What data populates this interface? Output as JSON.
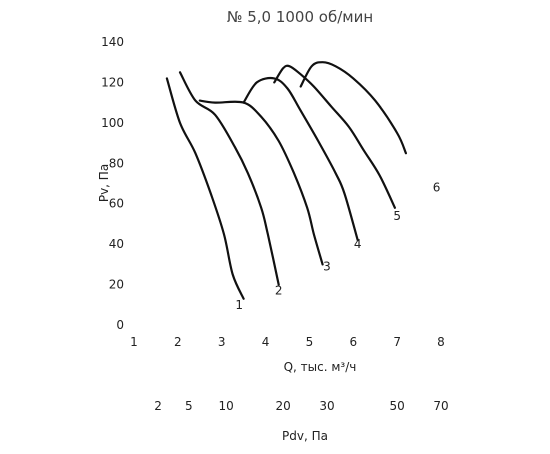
{
  "chart_data": {
    "type": "line",
    "title": "№ 5,0 1000 об/мин",
    "xlabel": "Q, тыс. м³/ч",
    "ylabel": "Pv, Па",
    "xlim": [
      1,
      8
    ],
    "ylim": [
      0,
      140
    ],
    "x_ticks": [
      1,
      2,
      3,
      4,
      5,
      6,
      7,
      8
    ],
    "y_ticks": [
      0,
      20,
      40,
      60,
      80,
      100,
      120,
      140
    ],
    "grid": false,
    "secondary_axis": {
      "label": "Pdv, Па",
      "tick_labels": [
        "2",
        "5",
        "10",
        "20",
        "30",
        "50",
        "70"
      ],
      "tick_q": [
        1.55,
        2.25,
        3.1,
        4.4,
        5.4,
        7.0,
        8.0
      ]
    },
    "series": [
      {
        "name": "1",
        "x": [
          1.75,
          2.05,
          2.4,
          2.75,
          3.05,
          3.25,
          3.5
        ],
        "y": [
          122,
          100,
          85,
          65,
          45,
          25,
          13
        ]
      },
      {
        "name": "2",
        "x": [
          2.05,
          2.4,
          2.85,
          3.3,
          3.6,
          3.9,
          4.05,
          4.3
        ],
        "y": [
          125,
          111,
          104,
          88,
          75,
          58,
          45,
          20
        ]
      },
      {
        "name": "3",
        "x": [
          2.5,
          2.85,
          3.5,
          3.9,
          4.3,
          4.65,
          4.95,
          5.1,
          5.3
        ],
        "y": [
          111,
          110,
          110,
          103,
          91,
          75,
          58,
          45,
          30
        ]
      },
      {
        "name": "4",
        "x": [
          3.5,
          3.8,
          4.2,
          4.5,
          4.8,
          5.2,
          5.6,
          5.8,
          6.1
        ],
        "y": [
          110,
          120,
          122,
          117,
          106,
          91,
          75,
          65,
          42
        ]
      },
      {
        "name": "5",
        "x": [
          4.2,
          4.4,
          4.55,
          4.8,
          5.1,
          5.5,
          5.9,
          6.25,
          6.6,
          6.95
        ],
        "y": [
          120,
          127,
          128,
          124,
          118,
          108,
          98,
          86,
          74,
          58
        ]
      },
      {
        "name": "6",
        "x": [
          4.8,
          5.05,
          5.3,
          5.6,
          6.0,
          6.5,
          7.0,
          7.2
        ],
        "y": [
          118,
          128,
          130,
          128,
          122,
          111,
          95,
          85
        ]
      }
    ],
    "curve_labels": [
      {
        "text": "1",
        "x": 3.4,
        "y": 8
      },
      {
        "text": "2",
        "x": 4.3,
        "y": 15
      },
      {
        "text": "3",
        "x": 5.4,
        "y": 27
      },
      {
        "text": "4",
        "x": 6.1,
        "y": 38
      },
      {
        "text": "5",
        "x": 7.0,
        "y": 52
      },
      {
        "text": "6",
        "x": 7.9,
        "y": 66
      }
    ]
  }
}
